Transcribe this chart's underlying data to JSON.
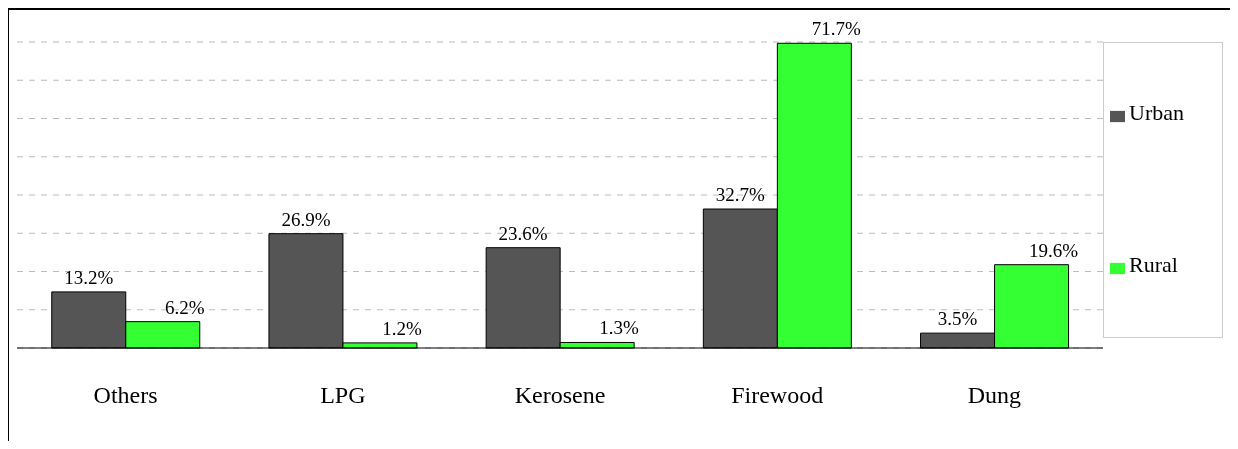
{
  "chart_data": {
    "type": "bar",
    "categories": [
      "Others",
      "LPG",
      "Kerosene",
      "Firewood",
      "Dung"
    ],
    "series": [
      {
        "name": "Urban",
        "color": "#555555",
        "values": [
          13.2,
          26.9,
          23.6,
          32.7,
          3.5
        ],
        "value_labels": [
          "13.2%",
          "26.9%",
          "23.6%",
          "32.7%",
          "3.5%"
        ]
      },
      {
        "name": "Rural",
        "color": "#33ff33",
        "values": [
          6.2,
          1.2,
          1.3,
          71.7,
          19.6
        ],
        "value_labels": [
          "6.2%",
          "1.2%",
          "1.3%",
          "71.7%",
          "19.6%"
        ]
      }
    ],
    "grid": "y",
    "legend": "right"
  }
}
